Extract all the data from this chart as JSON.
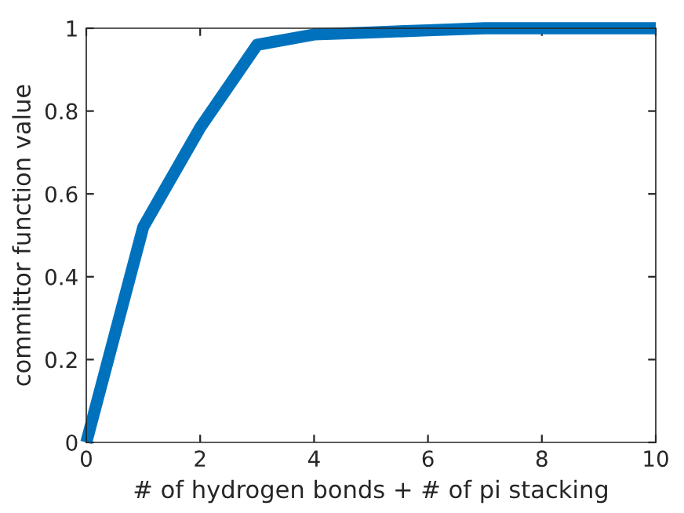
{
  "chart_data": {
    "type": "line",
    "xlabel": "# of hydrogen bonds + # of pi stacking",
    "ylabel": "committor function value",
    "x": [
      0,
      1,
      2,
      3,
      4,
      5,
      6,
      7,
      8,
      9,
      10
    ],
    "series": [
      {
        "color": "#0072bd",
        "values": [
          0,
          0.52,
          0.76,
          0.96,
          0.985,
          0.99,
          0.995,
          1.0,
          1.0,
          1.0,
          1.0
        ]
      }
    ],
    "xlim": [
      0,
      10
    ],
    "ylim": [
      0,
      1
    ],
    "xticks": [
      0,
      2,
      4,
      6,
      8,
      10
    ],
    "yticks": [
      0,
      0.2,
      0.4,
      0.6,
      0.8,
      1
    ],
    "grid": false,
    "legend": false,
    "marker": "none",
    "line_style": "solid"
  }
}
